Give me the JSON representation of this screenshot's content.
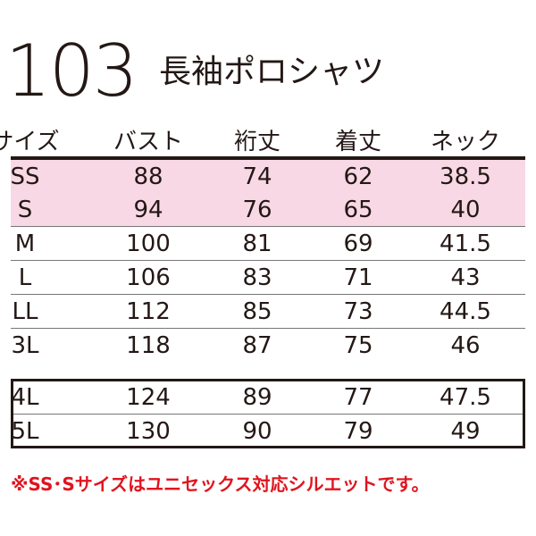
{
  "product": {
    "number": "103",
    "name": "長袖ポロシャツ"
  },
  "table": {
    "headers": [
      "サイズ",
      "バスト",
      "裄丈",
      "着丈",
      "ネック"
    ],
    "rows": [
      [
        "SS",
        "88",
        "74",
        "62",
        "38.5"
      ],
      [
        "S",
        "94",
        "76",
        "65",
        "40"
      ],
      [
        "M",
        "100",
        "81",
        "69",
        "41.5"
      ],
      [
        "L",
        "106",
        "83",
        "71",
        "43"
      ],
      [
        "LL",
        "112",
        "85",
        "73",
        "44.5"
      ],
      [
        "3L",
        "118",
        "87",
        "75",
        "46"
      ],
      [
        "4L",
        "124",
        "89",
        "77",
        "47.5"
      ],
      [
        "5L",
        "130",
        "90",
        "79",
        "49"
      ]
    ],
    "highlight_color": "#f8d8e5"
  },
  "note": "※SS･Sサイズはユニセックス対応シルエットです。",
  "note_color": "#e0141e"
}
